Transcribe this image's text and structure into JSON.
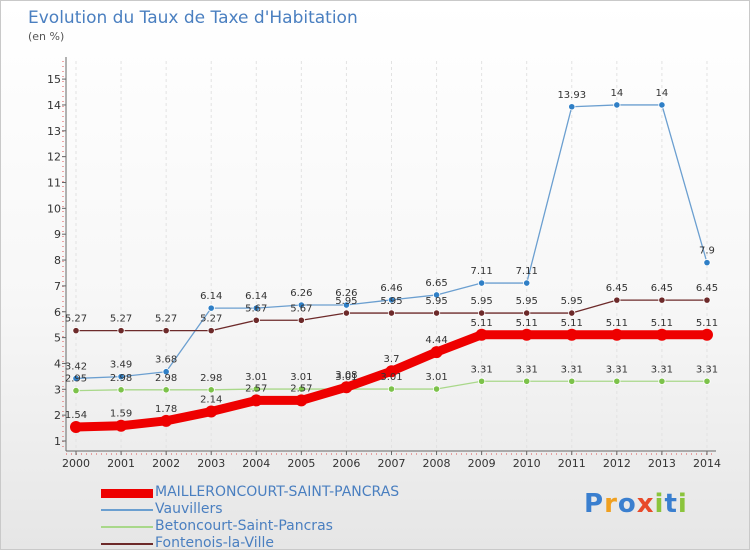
{
  "title": "Evolution du Taux de Taxe d'Habitation",
  "unit_label": "(en %)",
  "logo": {
    "text": "Proxiti",
    "letter_colors": [
      "#3a7fcf",
      "#f0a020",
      "#3a7fcf",
      "#e84a2a",
      "#8bc43c",
      "#3a7fcf",
      "#8bc43c"
    ]
  },
  "chart_data": {
    "type": "line",
    "title": "Evolution du Taux de Taxe d'Habitation",
    "ylabel": "(en %)",
    "xlabel": "",
    "x": [
      2000,
      2001,
      2002,
      2003,
      2004,
      2005,
      2006,
      2007,
      2008,
      2009,
      2010,
      2011,
      2012,
      2013,
      2014
    ],
    "ylim": [
      1,
      15
    ],
    "yticks": [
      1,
      2,
      3,
      4,
      5,
      6,
      7,
      8,
      9,
      10,
      11,
      12,
      13,
      14,
      15
    ],
    "legend_position": "bottom-left",
    "series": [
      {
        "name": "Vauvillers",
        "color": "#6b9fd0",
        "marker": "#2f7fc6",
        "width": 1.3,
        "values": [
          3.42,
          3.49,
          3.68,
          6.14,
          6.14,
          6.26,
          6.26,
          6.46,
          6.65,
          7.11,
          7.11,
          13.93,
          14,
          14,
          7.9
        ],
        "labels": [
          "3.42",
          "3.49",
          "3.68",
          "6.14",
          "6.14",
          "6.26",
          "6.26",
          "6.46",
          "6.65",
          "7.11",
          "7.11",
          "13.93",
          "14",
          "14",
          "7.9"
        ]
      },
      {
        "name": "Fontenois-la-Ville",
        "color": "#6d2a2a",
        "marker": "#6d2a2a",
        "width": 1.3,
        "values": [
          5.27,
          5.27,
          5.27,
          5.27,
          5.67,
          5.67,
          5.95,
          5.95,
          5.95,
          5.95,
          5.95,
          5.95,
          6.45,
          6.45,
          6.45
        ],
        "labels": [
          "5.27",
          "5.27",
          "5.27",
          "5.27",
          "5.67",
          "5.67",
          "5.95",
          "5.95",
          "5.95",
          "5.95",
          "5.95",
          "5.95",
          "6.45",
          "6.45",
          "6.45"
        ]
      },
      {
        "name": "Betoncourt-Saint-Pancras",
        "color": "#a9d88a",
        "marker": "#7cc24a",
        "width": 1.3,
        "values": [
          2.95,
          2.98,
          2.98,
          2.98,
          3.01,
          3.01,
          3.01,
          3.01,
          3.01,
          3.31,
          3.31,
          3.31,
          3.31,
          3.31,
          3.31
        ],
        "labels": [
          "2.95",
          "2.98",
          "2.98",
          "2.98",
          "3.01",
          "3.01",
          "3.01",
          "3.01",
          "3.01",
          "3.31",
          "3.31",
          "3.31",
          "3.31",
          "3.31",
          "3.31"
        ]
      },
      {
        "name": "MAILLERONCOURT-SAINT-PANCRAS",
        "color": "#ee0000",
        "marker": "#ee0000",
        "width": 9,
        "values": [
          1.54,
          1.59,
          1.78,
          2.14,
          2.57,
          2.57,
          3.08,
          3.7,
          4.44,
          5.11,
          5.11,
          5.11,
          5.11,
          5.11,
          5.11
        ],
        "labels": [
          "1.54",
          "1.59",
          "1.78",
          "2.14",
          "2.57",
          "2.57",
          "3.08",
          "3.7",
          "4.44",
          "5.11",
          "5.11",
          "5.11",
          "5.11",
          "5.11",
          "5.11"
        ]
      }
    ]
  },
  "legend": [
    {
      "label": "MAILLERONCOURT-SAINT-PANCRAS",
      "color": "#ee0000",
      "thickness": 9
    },
    {
      "label": "Vauvillers",
      "color": "#6b9fd0",
      "thickness": 2
    },
    {
      "label": "Betoncourt-Saint-Pancras",
      "color": "#a9d88a",
      "thickness": 2
    },
    {
      "label": "Fontenois-la-Ville",
      "color": "#6d2a2a",
      "thickness": 2
    }
  ]
}
